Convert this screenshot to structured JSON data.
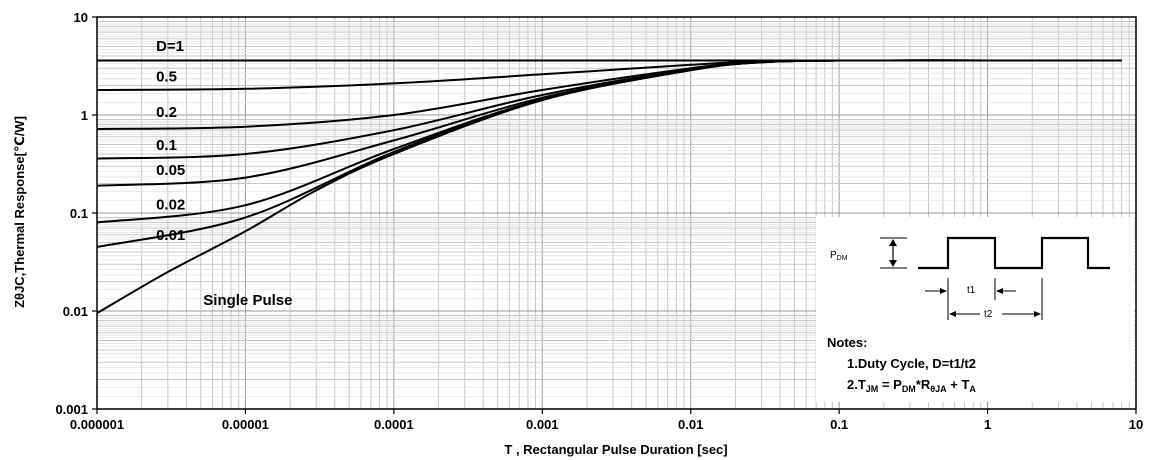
{
  "chart_data": {
    "type": "line",
    "title": "",
    "xlabel": "T , Rectangular Pulse Duration [sec]",
    "ylabel": "ZθJC,Thermal Response[℃/W]",
    "x_scale": "log",
    "y_scale": "log",
    "xlim": [
      1e-06,
      10
    ],
    "ylim": [
      0.001,
      10
    ],
    "grid": true,
    "x_tick_labels": [
      "0.000001",
      "0.00001",
      "0.0001",
      "0.001",
      "0.01",
      "0.1",
      "1",
      "10"
    ],
    "y_tick_labels": [
      "0.001",
      "0.01",
      "0.1",
      "1",
      "10"
    ],
    "series": [
      {
        "name": "D=1",
        "x": [
          1e-06,
          0.0001,
          0.001,
          0.01,
          0.1,
          1,
          8
        ],
        "y": [
          3.6,
          3.6,
          3.6,
          3.6,
          3.6,
          3.6,
          3.6
        ]
      },
      {
        "name": "0.5",
        "x": [
          1e-06,
          1e-05,
          0.0001,
          0.001,
          0.01,
          0.03,
          0.1,
          1,
          8
        ],
        "y": [
          1.8,
          1.85,
          2.1,
          2.6,
          3.25,
          3.55,
          3.6,
          3.6,
          3.6
        ]
      },
      {
        "name": "0.2",
        "x": [
          1e-06,
          1e-05,
          0.0001,
          0.001,
          0.01,
          0.03,
          0.1,
          1,
          8
        ],
        "y": [
          0.72,
          0.76,
          1.0,
          1.8,
          3.0,
          3.5,
          3.6,
          3.6,
          3.6
        ]
      },
      {
        "name": "0.1",
        "x": [
          1e-06,
          1e-05,
          0.0001,
          0.001,
          0.01,
          0.03,
          0.1,
          1,
          8
        ],
        "y": [
          0.36,
          0.4,
          0.7,
          1.6,
          2.95,
          3.48,
          3.6,
          3.6,
          3.6
        ]
      },
      {
        "name": "0.05",
        "x": [
          1e-06,
          1e-05,
          0.0001,
          0.001,
          0.01,
          0.03,
          0.1,
          1,
          8
        ],
        "y": [
          0.19,
          0.23,
          0.55,
          1.5,
          2.9,
          3.47,
          3.6,
          3.6,
          3.6
        ]
      },
      {
        "name": "0.02",
        "x": [
          1e-06,
          1e-05,
          0.0001,
          0.001,
          0.01,
          0.03,
          0.1,
          1,
          8
        ],
        "y": [
          0.08,
          0.12,
          0.45,
          1.45,
          2.88,
          3.46,
          3.6,
          3.6,
          3.6
        ]
      },
      {
        "name": "0.01",
        "x": [
          1e-06,
          1e-05,
          0.0001,
          0.001,
          0.01,
          0.03,
          0.1,
          1,
          8
        ],
        "y": [
          0.045,
          0.09,
          0.42,
          1.43,
          2.87,
          3.45,
          3.6,
          3.6,
          3.6
        ]
      },
      {
        "name": "Single Pulse",
        "x": [
          1e-06,
          3e-06,
          1e-05,
          3e-05,
          0.0001,
          0.001,
          0.01,
          0.03,
          0.1,
          1,
          8
        ],
        "y": [
          0.0095,
          0.025,
          0.065,
          0.17,
          0.4,
          1.42,
          2.86,
          3.45,
          3.6,
          3.6,
          3.6
        ]
      }
    ],
    "label_positions": {
      "D=1": [
        2.5e-06,
        4.5
      ],
      "0.5": [
        2.5e-06,
        2.2
      ],
      "0.2": [
        2.5e-06,
        0.95
      ],
      "0.1": [
        2.5e-06,
        0.44
      ],
      "0.05": [
        2.5e-06,
        0.245
      ],
      "0.02": [
        2.5e-06,
        0.108
      ],
      "0.01": [
        2.5e-06,
        0.053
      ],
      "Single Pulse": [
        5.2e-06,
        0.0115
      ]
    }
  },
  "notes": {
    "pdm_label": "P",
    "pdm_sub": "DM",
    "t1_label": "t1",
    "t2_label": "t2",
    "heading": "Notes:",
    "line1": "1.Duty  Cycle, D=t1/t2",
    "line2_prefix": "2.T",
    "line2_jm": "JM",
    "line2_mid": " = P",
    "line2_dm": "DM",
    "line2_r": "*R",
    "line2_theta": "θJA",
    "line2_plus": " + T",
    "line2_a": "A"
  }
}
